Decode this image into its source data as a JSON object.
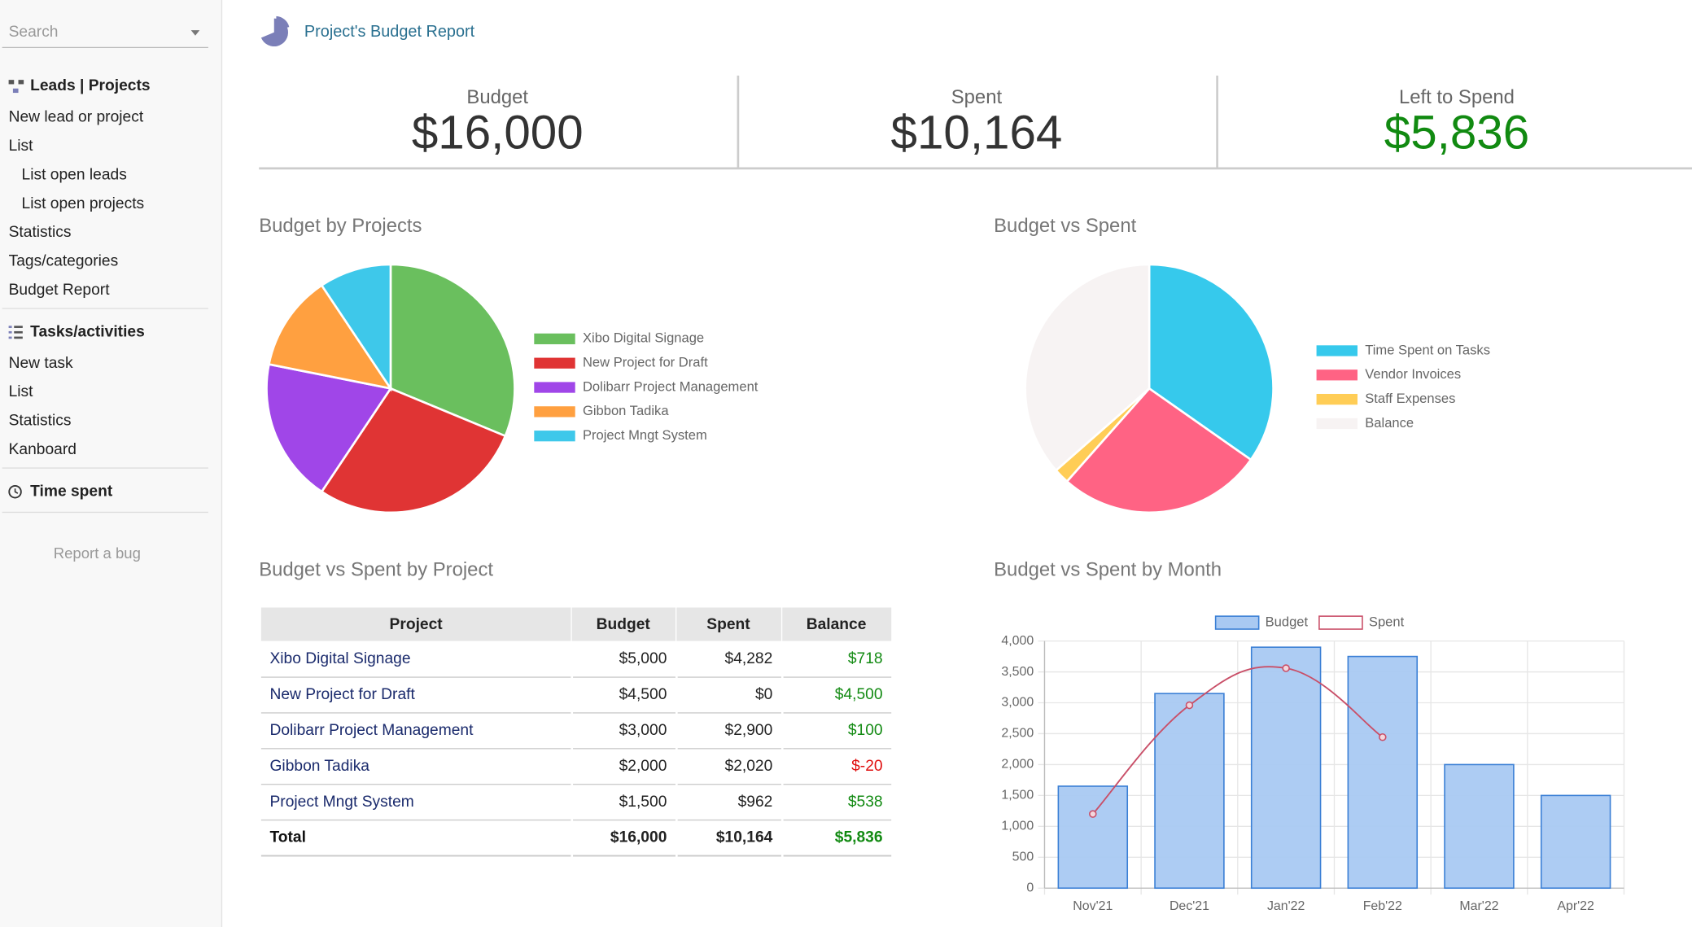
{
  "sidebar": {
    "search_placeholder": "Search",
    "sections": [
      {
        "title": "Leads | Projects",
        "items": [
          {
            "label": "New lead or project",
            "indent": false
          },
          {
            "label": "List",
            "indent": false
          },
          {
            "label": "List open leads",
            "indent": true
          },
          {
            "label": "List open projects",
            "indent": true
          },
          {
            "label": "Statistics",
            "indent": false
          },
          {
            "label": "Tags/categories",
            "indent": false
          },
          {
            "label": "Budget Report",
            "indent": false
          }
        ]
      },
      {
        "title": "Tasks/activities",
        "items": [
          {
            "label": "New task",
            "indent": false
          },
          {
            "label": "List",
            "indent": false
          },
          {
            "label": "Statistics",
            "indent": false
          },
          {
            "label": "Kanboard",
            "indent": false
          }
        ]
      },
      {
        "title": "Time spent",
        "items": []
      }
    ],
    "footer": "Report a bug"
  },
  "header": {
    "title": "Project's Budget Report"
  },
  "kpis": [
    {
      "label": "Budget",
      "value": "$16,000",
      "color": "#333333"
    },
    {
      "label": "Spent",
      "value": "$10,164",
      "color": "#333333"
    },
    {
      "label": "Left to Spend",
      "value": "$5,836",
      "color": "#118a11"
    }
  ],
  "chart_data": [
    {
      "type": "pie",
      "title": "Budget by Projects",
      "categories": [
        "Xibo Digital Signage",
        "New Project for Draft",
        "Dolibarr Project Management",
        "Gibbon Tadika",
        "Project Mngt System"
      ],
      "values": [
        5000,
        4500,
        3000,
        2000,
        1500
      ],
      "colors": [
        "#6abf5e",
        "#e03434",
        "#a046e8",
        "#ffa040",
        "#3ec8ea"
      ]
    },
    {
      "type": "pie",
      "title": "Budget vs Spent",
      "categories": [
        "Time Spent on Tasks",
        "Vendor Invoices",
        "Staff Expenses",
        "Balance"
      ],
      "values": [
        5556,
        4289,
        319,
        5836
      ],
      "colors": [
        "#36c9ec",
        "#ff6384",
        "#ffcd56",
        "#f7f3f3"
      ]
    },
    {
      "type": "bar",
      "title": "Budget vs Spent by Month",
      "categories": [
        "Nov'21",
        "Dec'21",
        "Jan'22",
        "Feb'22",
        "Mar'22",
        "Apr'22"
      ],
      "series": [
        {
          "name": "Budget",
          "color": "#a9c9f2",
          "values": [
            1650,
            3150,
            3900,
            3750,
            2000,
            1500
          ]
        },
        {
          "name": "Spent",
          "type": "line",
          "color": "#c94f68",
          "values": [
            1200,
            2960,
            3560,
            2444,
            null,
            null
          ]
        }
      ],
      "ylim": [
        0,
        4000
      ],
      "yticks": [
        0,
        500,
        {
          "value": 1000,
          "label": "1,000"
        },
        {
          "value": 1500,
          "label": "1,500"
        },
        {
          "value": 2000,
          "label": "2,000"
        },
        {
          "value": 2500,
          "label": "2,500"
        },
        {
          "value": 3000,
          "label": "3,000"
        },
        {
          "value": 3500,
          "label": "3,500"
        },
        {
          "value": 4000,
          "label": "4,000"
        }
      ],
      "grid": true,
      "legend": "top"
    }
  ],
  "table": {
    "title": "Budget vs Spent by Project",
    "columns": [
      "Project",
      "Budget",
      "Spent",
      "Balance"
    ],
    "rows": [
      [
        "Xibo Digital Signage",
        "$5,000",
        "$4,282",
        "$718"
      ],
      [
        "New Project for Draft",
        "$4,500",
        "$0",
        "$4,500"
      ],
      [
        "Dolibarr Project Management",
        "$3,000",
        "$2,900",
        "$100"
      ],
      [
        "Gibbon Tadika",
        "$2,000",
        "$2,020",
        "$-20"
      ],
      [
        "Project Mngt System",
        "$1,500",
        "$962",
        "$538"
      ]
    ],
    "total": [
      "Total",
      "$16,000",
      "$10,164",
      "$5,836"
    ]
  }
}
